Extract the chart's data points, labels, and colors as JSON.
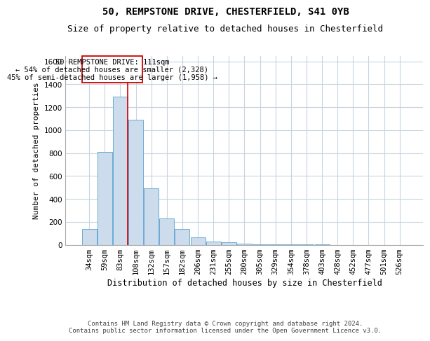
{
  "title1": "50, REMPSTONE DRIVE, CHESTERFIELD, S41 0YB",
  "title2": "Size of property relative to detached houses in Chesterfield",
  "xlabel": "Distribution of detached houses by size in Chesterfield",
  "ylabel": "Number of detached properties",
  "categories": [
    "34sqm",
    "59sqm",
    "83sqm",
    "108sqm",
    "132sqm",
    "157sqm",
    "182sqm",
    "206sqm",
    "231sqm",
    "255sqm",
    "280sqm",
    "305sqm",
    "329sqm",
    "354sqm",
    "378sqm",
    "403sqm",
    "428sqm",
    "452sqm",
    "477sqm",
    "501sqm",
    "526sqm"
  ],
  "values": [
    140,
    810,
    1290,
    1090,
    490,
    230,
    135,
    65,
    30,
    20,
    10,
    5,
    3,
    2,
    1,
    1,
    0,
    0,
    0,
    0,
    0
  ],
  "bar_color": "#ccdcec",
  "bar_edge_color": "#6aaad4",
  "grid_color": "#c8d4e0",
  "property_line_color": "#cc0000",
  "annotation_box_color": "#ffffff",
  "annotation_box_edge": "#cc0000",
  "annotation_line1": "50 REMPSTONE DRIVE: 111sqm",
  "annotation_line2": "← 54% of detached houses are smaller (2,328)",
  "annotation_line3": "45% of semi-detached houses are larger (1,958) →",
  "footer1": "Contains HM Land Registry data © Crown copyright and database right 2024.",
  "footer2": "Contains public sector information licensed under the Open Government Licence v3.0.",
  "ylim": [
    0,
    1650
  ],
  "yticks": [
    0,
    200,
    400,
    600,
    800,
    1000,
    1200,
    1400,
    1600
  ],
  "title1_fontsize": 10,
  "title2_fontsize": 9,
  "xlabel_fontsize": 8.5,
  "ylabel_fontsize": 8,
  "tick_fontsize": 7.5,
  "footer_fontsize": 6.5,
  "annotation_fontsize": 7.5
}
